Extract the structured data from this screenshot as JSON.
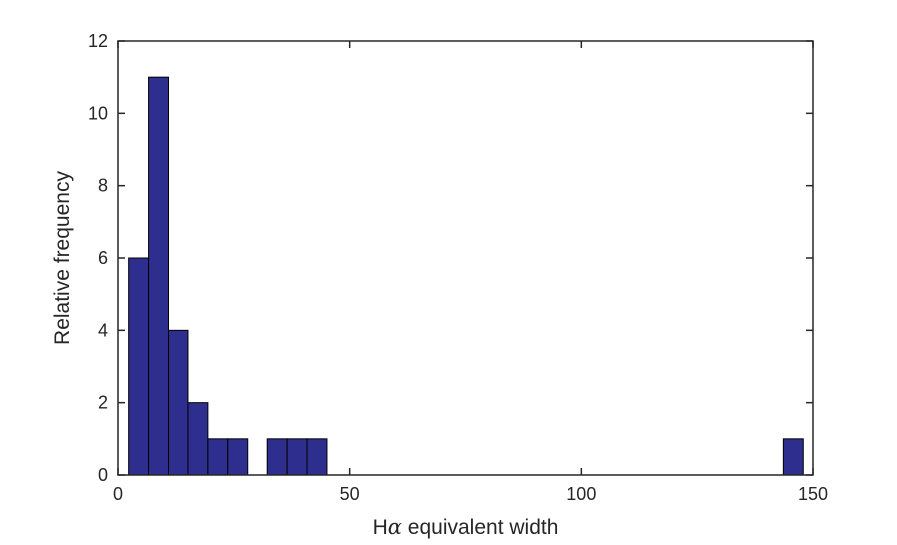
{
  "chart_data": {
    "type": "bar",
    "title": "",
    "xlabel": {
      "prefix": "H",
      "symbol": "α",
      "suffix": " equivalent width"
    },
    "ylabel": "Relative frequency",
    "xlim": [
      0,
      150
    ],
    "ylim": [
      0,
      12
    ],
    "xticks": [
      0,
      50,
      100,
      150
    ],
    "yticks": [
      0,
      2,
      4,
      6,
      8,
      10,
      12
    ],
    "xtick_labels": [
      "0",
      "50",
      "100",
      "150"
    ],
    "ytick_labels": [
      "0",
      "2",
      "4",
      "6",
      "8",
      "10",
      "12"
    ],
    "grid": false,
    "bar_color": "#2e2e8f",
    "edge_color": "#000000",
    "bins": [
      {
        "start": 2.3,
        "end": 6.6,
        "count": 6
      },
      {
        "start": 6.6,
        "end": 10.9,
        "count": 11
      },
      {
        "start": 10.9,
        "end": 15.1,
        "count": 4
      },
      {
        "start": 15.1,
        "end": 19.4,
        "count": 2
      },
      {
        "start": 19.4,
        "end": 23.7,
        "count": 1
      },
      {
        "start": 23.7,
        "end": 28.0,
        "count": 1
      },
      {
        "start": 32.2,
        "end": 36.5,
        "count": 1
      },
      {
        "start": 36.5,
        "end": 40.8,
        "count": 1
      },
      {
        "start": 40.8,
        "end": 45.1,
        "count": 1
      },
      {
        "start": 143.6,
        "end": 147.9,
        "count": 1
      }
    ]
  }
}
